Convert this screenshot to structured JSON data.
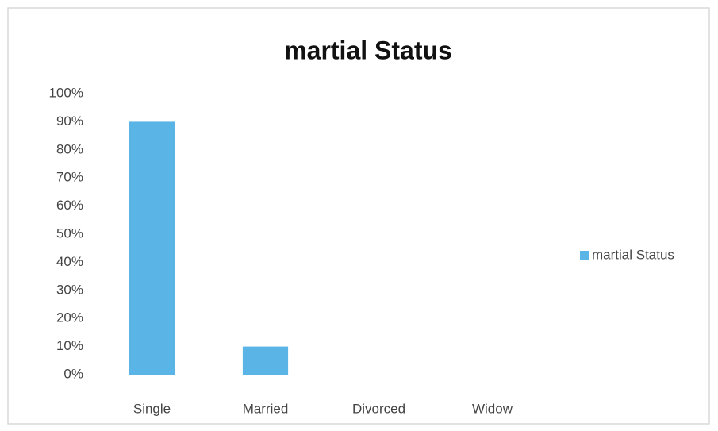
{
  "chart_data": {
    "type": "bar",
    "title": "martial Status",
    "categories": [
      "Single",
      "Married",
      "Divorced",
      "Widow"
    ],
    "series": [
      {
        "name": "martial Status",
        "color": "#5ab4e5",
        "values": [
          90,
          10,
          0,
          0
        ]
      }
    ],
    "ylim": [
      0,
      100
    ],
    "yticks": [
      {
        "value": 0,
        "label": "0%"
      },
      {
        "value": 10,
        "label": "10%"
      },
      {
        "value": 20,
        "label": "20%"
      },
      {
        "value": 30,
        "label": "30%"
      },
      {
        "value": 40,
        "label": "40%"
      },
      {
        "value": 50,
        "label": "50%"
      },
      {
        "value": 60,
        "label": "60%"
      },
      {
        "value": 70,
        "label": "70%"
      },
      {
        "value": 80,
        "label": "80%"
      },
      {
        "value": 90,
        "label": "90%"
      },
      {
        "value": 100,
        "label": "100%"
      }
    ],
    "grid": false,
    "legend": "right"
  }
}
